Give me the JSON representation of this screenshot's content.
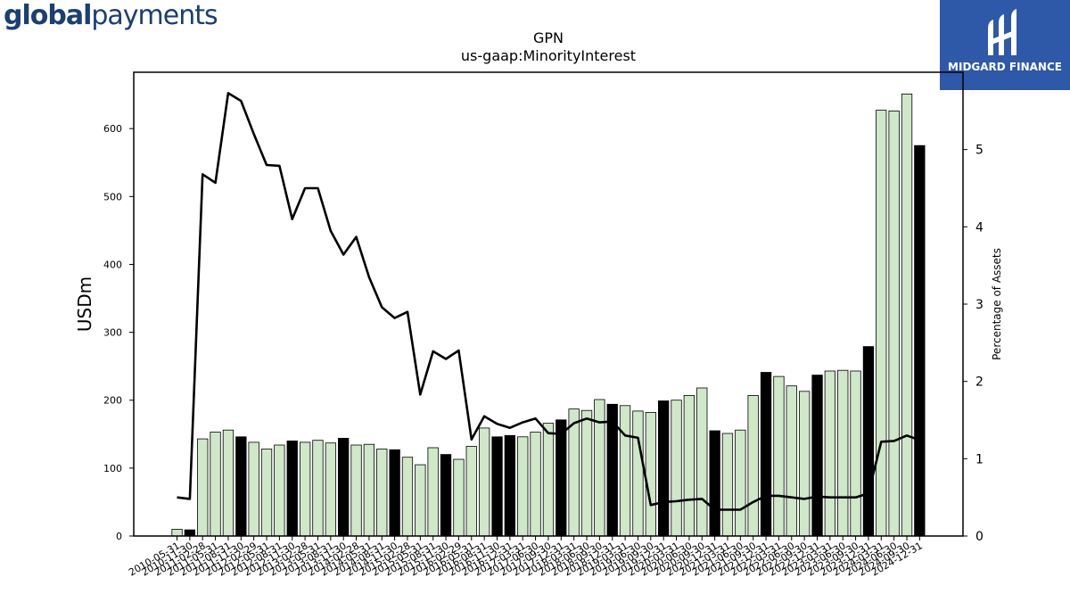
{
  "brand": {
    "left_bold": "global",
    "left_regular": "payments",
    "right": "MIDGARD FINANCE"
  },
  "colors": {
    "bar_light": "#cfe8c8",
    "bar_dark": "#000000",
    "line": "#000000",
    "badge_bg": "#2e58a8"
  },
  "chart_data": {
    "type": "bar",
    "title": "GPN",
    "subtitle": "us-gaap:MinorityInterest",
    "ylabel": "USDm",
    "y2label": "Percentage of Assets",
    "ylim": [
      0,
      683
    ],
    "y2lim": [
      0,
      6.0
    ],
    "yticks": [
      0,
      100,
      200,
      300,
      400,
      500,
      600
    ],
    "y2ticks": [
      0,
      1,
      2,
      3,
      4,
      5
    ],
    "categories": [
      "2010-05-31",
      "2010-11-30",
      "2011-02-28",
      "2011-05-31",
      "2011-08-31",
      "2011-11-30",
      "2012-02-29",
      "2012-05-31",
      "2012-08-31",
      "2012-11-30",
      "2013-02-28",
      "2013-05-31",
      "2013-08-31",
      "2013-11-30",
      "2014-02-28",
      "2014-05-31",
      "2014-08-31",
      "2014-11-30",
      "2015-02-28",
      "2015-05-31",
      "2015-08-31",
      "2015-11-30",
      "2016-02-29",
      "2016-05-31",
      "2016-08-31",
      "2016-11-30",
      "2016-12-31",
      "2017-03-31",
      "2017-06-30",
      "2017-09-30",
      "2017-12-31",
      "2018-03-31",
      "2018-06-30",
      "2018-09-30",
      "2018-12-31",
      "2019-03-31",
      "2019-06-30",
      "2019-09-30",
      "2019-12-31",
      "2020-03-31",
      "2020-06-30",
      "2020-09-30",
      "2020-12-31",
      "2021-03-31",
      "2021-06-30",
      "2021-09-30",
      "2021-12-31",
      "2022-03-31",
      "2022-06-30",
      "2022-09-30",
      "2022-12-31",
      "2023-03-31",
      "2023-06-30",
      "2023-09-30",
      "2023-12-31",
      "2024-03-31",
      "2024-06-30",
      "2024-09-30",
      "2024-12-31"
    ],
    "series": [
      {
        "kind": "bar",
        "values": [
          10,
          9,
          143,
          153,
          156,
          146,
          138,
          128,
          134,
          140,
          138,
          141,
          137,
          144,
          134,
          135,
          128,
          127,
          116,
          105,
          130,
          120,
          113,
          132,
          159,
          146,
          148,
          146,
          153,
          166,
          171,
          187,
          185,
          201,
          194,
          192,
          184,
          182,
          199,
          200,
          207,
          218,
          155,
          151,
          156,
          207,
          241,
          235,
          221,
          213,
          237,
          243,
          244,
          243,
          279,
          627,
          626,
          651,
          575
        ],
        "dark": [
          false,
          true,
          false,
          false,
          false,
          true,
          false,
          false,
          false,
          true,
          false,
          false,
          false,
          true,
          false,
          false,
          false,
          true,
          false,
          false,
          false,
          true,
          false,
          false,
          false,
          true,
          true,
          false,
          false,
          false,
          true,
          false,
          false,
          false,
          true,
          false,
          false,
          false,
          true,
          false,
          false,
          false,
          true,
          false,
          false,
          false,
          true,
          false,
          false,
          false,
          true,
          false,
          false,
          false,
          true,
          false,
          false,
          false,
          true
        ]
      },
      {
        "kind": "line",
        "values": [
          0.5,
          0.48,
          4.68,
          4.57,
          5.73,
          5.63,
          5.2,
          4.8,
          4.79,
          4.1,
          4.5,
          4.5,
          3.95,
          3.64,
          3.87,
          3.35,
          2.96,
          2.82,
          2.9,
          1.83,
          2.39,
          2.29,
          2.4,
          1.25,
          1.55,
          1.45,
          1.4,
          1.47,
          1.52,
          1.33,
          1.32,
          1.46,
          1.52,
          1.47,
          1.48,
          1.3,
          1.27,
          0.4,
          0.44,
          0.45,
          0.47,
          0.48,
          0.34,
          0.34,
          0.34,
          0.44,
          0.52,
          0.52,
          0.5,
          0.48,
          0.51,
          0.5,
          0.5,
          0.5,
          0.55,
          1.22,
          1.23,
          1.3,
          1.24
        ]
      }
    ]
  }
}
